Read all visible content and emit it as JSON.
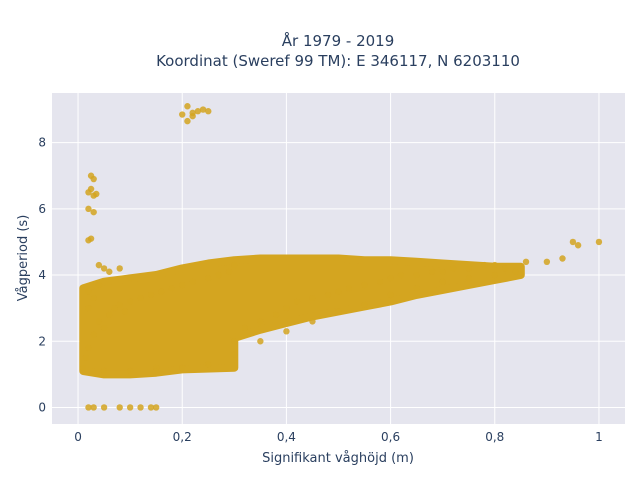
{
  "chart_data": {
    "type": "scatter",
    "title": [
      "År 1979 - 2019",
      "Koordinat (Sweref 99 TM): E 346117, N 6203110"
    ],
    "xlabel": "Signifikant våghöjd (m)",
    "ylabel": "Vågperiod (s)",
    "xlim": [
      -0.05,
      1.05
    ],
    "ylim": [
      -0.5,
      9.5
    ],
    "x_ticks": [
      0,
      0.2,
      0.4,
      0.6,
      0.8,
      1
    ],
    "x_tick_labels": [
      "0",
      "0,2",
      "0,4",
      "0,6",
      "0,8",
      "1"
    ],
    "y_ticks": [
      0,
      2,
      4,
      6,
      8
    ],
    "y_tick_labels": [
      "0",
      "2",
      "4",
      "6",
      "8"
    ],
    "grid": true,
    "legend": "none",
    "marker_color": "#d4a520",
    "background_color": "#e5e5ee",
    "series": [
      {
        "x": [
          0.02,
          0.03,
          0.05,
          0.08,
          0.1,
          0.12,
          0.14,
          0.15,
          0.2,
          0.21,
          0.22,
          0.23,
          0.24,
          0.25,
          0.21,
          0.22,
          0.02,
          0.025,
          0.03,
          0.035,
          0.02,
          0.03,
          0.025,
          0.02,
          0.025,
          0.03,
          0.01,
          0.015,
          0.02,
          0.03,
          0.04,
          0.05,
          0.06,
          0.07,
          0.08,
          0.09,
          0.1,
          0.12,
          0.14,
          0.16,
          0.18,
          0.2,
          0.22,
          0.25,
          0.27,
          0.29,
          0.3,
          0.3,
          0.32,
          0.35,
          0.38,
          0.4,
          0.42,
          0.45,
          0.48,
          0.5,
          0.52,
          0.55,
          0.58,
          0.6,
          0.62,
          0.65,
          0.68,
          0.7,
          0.72,
          0.75,
          0.78,
          0.8,
          0.82,
          0.84,
          0.86,
          0.9,
          0.93,
          0.95,
          0.96,
          1.0,
          0.05,
          0.1,
          0.15,
          0.2,
          0.25,
          0.3,
          0.35,
          0.4,
          0.45,
          0.5,
          0.55,
          0.6,
          0.65,
          0.7,
          0.75,
          0.8,
          0.02,
          0.03,
          0.02,
          0.05,
          0.04,
          0.06,
          0.08,
          0.1,
          0.04
        ],
        "y": [
          0,
          0,
          0,
          0,
          0,
          0,
          0,
          0,
          8.85,
          9.1,
          8.9,
          8.95,
          9.0,
          8.95,
          8.65,
          8.8,
          6.5,
          6.6,
          6.4,
          6.45,
          6.0,
          5.9,
          5.1,
          5.05,
          7.0,
          6.9,
          1.2,
          1.5,
          1.8,
          2.2,
          2.6,
          2.4,
          2.8,
          3.0,
          3.1,
          2.9,
          3.2,
          3.3,
          3.4,
          3.5,
          3.6,
          3.7,
          3.8,
          3.9,
          4.0,
          4.1,
          4.3,
          2.0,
          2.4,
          2.6,
          2.8,
          3.0,
          3.2,
          3.3,
          3.4,
          3.5,
          3.6,
          3.7,
          3.8,
          3.9,
          4.0,
          4.0,
          4.1,
          4.1,
          4.2,
          4.2,
          4.3,
          4.3,
          4.2,
          4.1,
          4.4,
          4.4,
          4.5,
          5.0,
          4.9,
          5.0,
          1.1,
          1.1,
          1.2,
          1.2,
          1.3,
          1.6,
          2.0,
          2.3,
          2.6,
          2.9,
          3.1,
          3.4,
          3.6,
          3.8,
          3.9,
          4.0,
          3.5,
          3.3,
          3.0,
          4.2,
          4.3,
          4.1,
          4.2,
          3.9,
          3.7
        ]
      }
    ],
    "dense_band": {
      "upper": [
        [
          0.01,
          3.6
        ],
        [
          0.05,
          3.8
        ],
        [
          0.1,
          3.9
        ],
        [
          0.15,
          4.0
        ],
        [
          0.2,
          4.2
        ],
        [
          0.25,
          4.35
        ],
        [
          0.3,
          4.45
        ],
        [
          0.35,
          4.5
        ],
        [
          0.4,
          4.5
        ],
        [
          0.45,
          4.5
        ],
        [
          0.5,
          4.5
        ],
        [
          0.55,
          4.45
        ],
        [
          0.6,
          4.45
        ],
        [
          0.65,
          4.4
        ],
        [
          0.7,
          4.35
        ],
        [
          0.75,
          4.3
        ],
        [
          0.8,
          4.25
        ],
        [
          0.85,
          4.25
        ]
      ],
      "lower": [
        [
          0.85,
          4.0
        ],
        [
          0.8,
          3.85
        ],
        [
          0.75,
          3.7
        ],
        [
          0.7,
          3.55
        ],
        [
          0.65,
          3.4
        ],
        [
          0.6,
          3.2
        ],
        [
          0.55,
          3.05
        ],
        [
          0.5,
          2.9
        ],
        [
          0.45,
          2.75
        ],
        [
          0.4,
          2.55
        ],
        [
          0.35,
          2.35
        ],
        [
          0.3,
          2.1
        ],
        [
          0.3,
          1.2
        ],
        [
          0.2,
          1.15
        ],
        [
          0.15,
          1.05
        ],
        [
          0.1,
          1.0
        ],
        [
          0.05,
          1.0
        ],
        [
          0.01,
          1.1
        ]
      ]
    }
  }
}
